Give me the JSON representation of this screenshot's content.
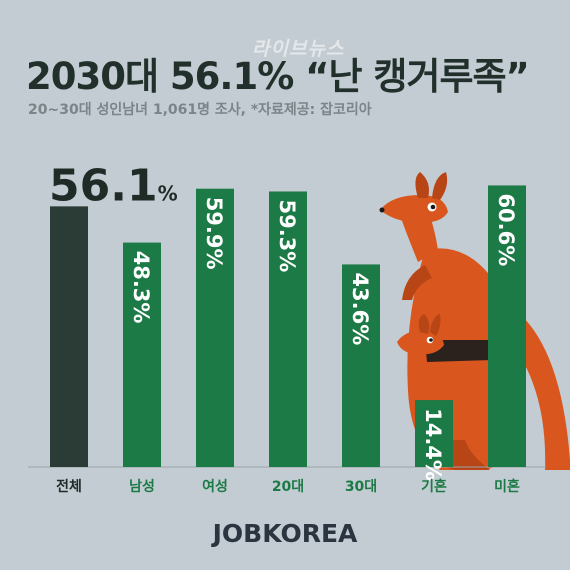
{
  "watermark": "라이브뉴스",
  "title": "2030대 56.1% “난 캥거루족”",
  "subtitle": "20~30대 성인남녀 1,061명 조사,  *자료제공: 잡코리아",
  "brand": "JOBKOREA",
  "colors": {
    "background": "#c3ccd2",
    "total_bar": "#2a3c35",
    "bar": "#1b7a45",
    "kangaroo": "#d9561e",
    "label_dark": "#1f2b27",
    "label_green": "#1b7a45"
  },
  "chart_data": {
    "type": "bar",
    "title": "2030대 56.1% “난 캥거루족”",
    "categories": [
      "전체",
      "남성",
      "여성",
      "20대",
      "30대",
      "기혼",
      "미혼"
    ],
    "values": [
      56.1,
      48.3,
      59.9,
      59.3,
      43.6,
      14.4,
      60.6
    ],
    "data_labels": [
      "56.1%",
      "48.3%",
      "59.9%",
      "59.3%",
      "43.6%",
      "14.4%",
      "60.6%"
    ],
    "total_label_main": "56.1",
    "total_label_unit": "%",
    "ylim": [
      0,
      65
    ],
    "grid": false,
    "legend": "none"
  }
}
